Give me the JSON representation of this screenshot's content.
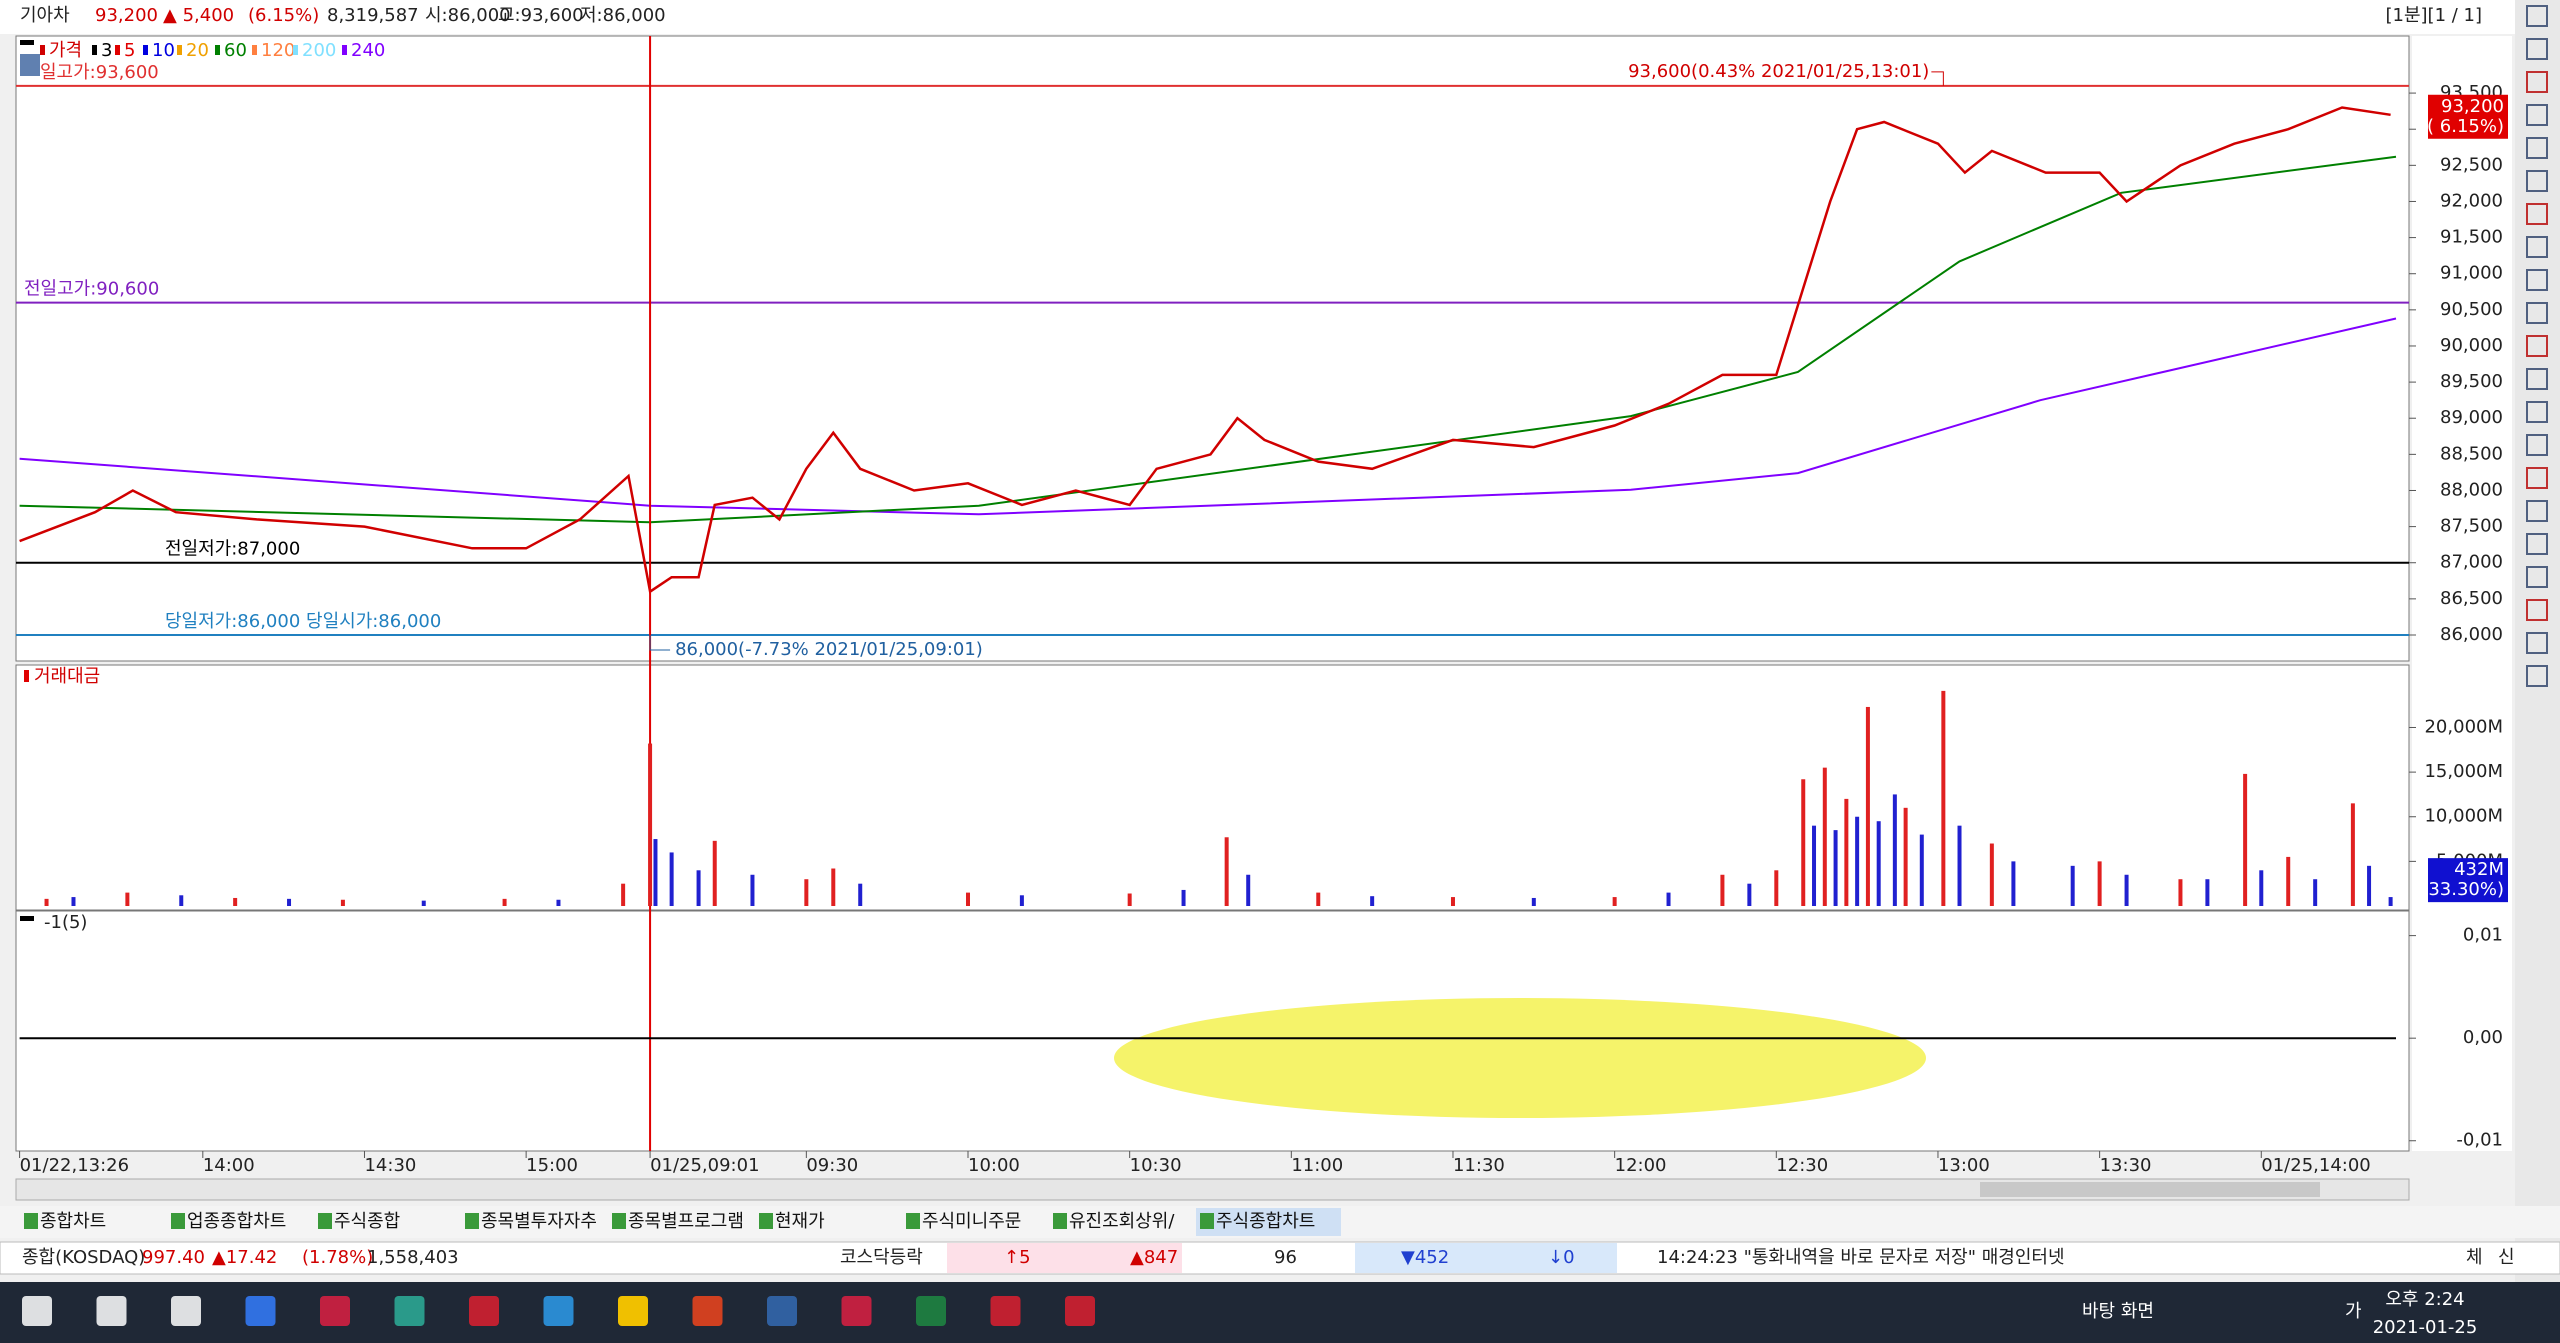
{
  "header": {
    "name": "기아차",
    "price": "93,200",
    "change": "▲ 5,400",
    "rate": "(6.15%)",
    "volume": "8,319,587",
    "open": "시:86,000",
    "high": "고:93,600",
    "low": "저:86,000",
    "period": "[1분][1 / 1]"
  },
  "chart_data": [
    {
      "type": "line",
      "legend": [
        {
          "name": "가격",
          "color": "#d00000"
        },
        {
          "name": "3",
          "color": "#000000"
        },
        {
          "name": "5",
          "color": "#e00000"
        },
        {
          "name": "10",
          "color": "#0000e0"
        },
        {
          "name": "20",
          "color": "#f0a000"
        },
        {
          "name": "60",
          "color": "#008000"
        },
        {
          "name": "120",
          "color": "#ff8040"
        },
        {
          "name": "200",
          "color": "#80e0ff"
        },
        {
          "name": "240",
          "color": "#8000ff"
        }
      ],
      "series": [
        {
          "color": "#8000ff",
          "x": [
            0,
            117,
            178,
            299,
            330,
            375,
            441
          ],
          "values": [
            88440,
            87790,
            87670,
            88010,
            88240,
            89250,
            90380
          ]
        },
        {
          "color": "#008000",
          "x": [
            0,
            117,
            178,
            299,
            330,
            360,
            390,
            441
          ],
          "values": [
            87790,
            87560,
            87790,
            89030,
            89640,
            91170,
            92120,
            92620
          ]
        },
        {
          "color": "#d00000",
          "x": [
            0,
            14,
            21,
            29,
            44,
            64,
            84,
            94,
            104,
            113,
            117,
            121,
            126,
            129,
            136,
            141,
            146,
            151,
            156,
            166,
            176,
            186,
            196,
            206,
            211,
            221,
            226,
            231,
            241,
            251,
            266,
            281,
            296,
            306,
            316,
            326,
            331,
            336,
            341,
            346,
            356,
            361,
            366,
            376,
            386,
            391,
            401,
            411,
            421,
            431,
            440
          ],
          "values": [
            87300,
            87700,
            88000,
            87700,
            87600,
            87500,
            87200,
            87200,
            87600,
            88200,
            86600,
            86800,
            86800,
            87800,
            87900,
            87600,
            88300,
            88800,
            88300,
            88000,
            88100,
            87800,
            88000,
            87800,
            88300,
            88500,
            89000,
            88700,
            88400,
            88300,
            88700,
            88600,
            88900,
            89200,
            89600,
            89600,
            90800,
            92000,
            93000,
            93100,
            92800,
            92400,
            92700,
            92400,
            92400,
            92000,
            92500,
            92800,
            93000,
            93300,
            93200
          ]
        }
      ],
      "xlim": [
        0,
        441
      ],
      "ylim": [
        85640,
        94290
      ],
      "yticks": [
        {
          "value": 86000,
          "label": "86,000"
        },
        {
          "value": 86500,
          "label": "86,500"
        },
        {
          "value": 87000,
          "label": "87,000"
        },
        {
          "value": 87500,
          "label": "87,500"
        },
        {
          "value": 88000,
          "label": "88,000"
        },
        {
          "value": 88500,
          "label": "88,500"
        },
        {
          "value": 89000,
          "label": "89,000"
        },
        {
          "value": 89500,
          "label": "89,500"
        },
        {
          "value": 90000,
          "label": "90,000"
        },
        {
          "value": 90500,
          "label": "90,500"
        },
        {
          "value": 91000,
          "label": "91,000"
        },
        {
          "value": 91500,
          "label": "91,500"
        },
        {
          "value": 92000,
          "label": "92,000"
        },
        {
          "value": 92500,
          "label": "92,500"
        },
        {
          "value": 93000,
          "label": "93,000"
        },
        {
          "value": 93500,
          "label": "93,500"
        }
      ],
      "xticks": [
        {
          "value": 0,
          "label": "01/22,13:26"
        },
        {
          "value": 34,
          "label": "14:00"
        },
        {
          "value": 64,
          "label": "14:30"
        },
        {
          "value": 94,
          "label": "15:00"
        },
        {
          "value": 117,
          "label": "01/25,09:01"
        },
        {
          "value": 146,
          "label": "09:30"
        },
        {
          "value": 176,
          "label": "10:00"
        },
        {
          "value": 206,
          "label": "10:30"
        },
        {
          "value": 236,
          "label": "11:00"
        },
        {
          "value": 266,
          "label": "11:30"
        },
        {
          "value": 296,
          "label": "12:00"
        },
        {
          "value": 326,
          "label": "12:30"
        },
        {
          "value": 356,
          "label": "13:00"
        },
        {
          "value": 386,
          "label": "13:30"
        },
        {
          "value": 416,
          "label": "01/25,14:00"
        }
      ],
      "hlines": [
        {
          "value": 93600,
          "label": "일고가:93,600",
          "color": "#e03030"
        },
        {
          "value": 90600,
          "label": "전일고가:90,600",
          "color": "#8020c0"
        },
        {
          "value": 87000,
          "label": "전일저가:87,000",
          "color": "#000000"
        },
        {
          "value": 86000,
          "label": "당일저가:86,000 당일시가:86,000",
          "color": "#2080c0"
        }
      ],
      "high_note": {
        "x": 357,
        "value": 93600,
        "label": "93,600(0.43% 2021/01/25,13:01)"
      },
      "low_note": {
        "x": 117,
        "value": 86000,
        "label": "86,000(-7.73% 2021/01/25,09:01)"
      },
      "crosshair_x": 117,
      "last_tag": {
        "value": 93200,
        "label": "93,200",
        "change": "( 6.15%)"
      }
    },
    {
      "type": "bar",
      "title": "거래대금",
      "xlim": [
        0,
        441
      ],
      "ylim": [
        0,
        27000
      ],
      "yticks": [
        {
          "value": 5000,
          "label": "5,000M"
        },
        {
          "value": 10000,
          "label": "10,000M"
        },
        {
          "value": 15000,
          "label": "15,000M"
        },
        {
          "value": 20000,
          "label": "20,000M"
        }
      ],
      "series": [
        {
          "color": "#e02020",
          "x": [
            5,
            20,
            40,
            60,
            90,
            112,
            117,
            129,
            146,
            151,
            176,
            206,
            224,
            241,
            266,
            296,
            316,
            326,
            331,
            335,
            339,
            343,
            350,
            357,
            366,
            386,
            401,
            413,
            421,
            433
          ],
          "values": [
            800,
            1500,
            900,
            700,
            800,
            2500,
            18200,
            7300,
            3000,
            4200,
            1500,
            1400,
            7700,
            1500,
            1000,
            1000,
            3500,
            4000,
            14200,
            15500,
            12000,
            22300,
            11000,
            24100,
            7000,
            5000,
            3000,
            14800,
            5500,
            11500
          ]
        },
        {
          "color": "#2020d0",
          "x": [
            10,
            30,
            50,
            75,
            100,
            118,
            121,
            126,
            136,
            156,
            186,
            216,
            228,
            251,
            281,
            306,
            321,
            333,
            337,
            341,
            345,
            348,
            353,
            360,
            370,
            381,
            391,
            406,
            416,
            426,
            436,
            440
          ],
          "values": [
            1000,
            1200,
            800,
            600,
            700,
            7500,
            6000,
            4000,
            3500,
            2500,
            1200,
            1800,
            3500,
            1100,
            900,
            1500,
            2500,
            9000,
            8500,
            10000,
            9500,
            12500,
            8000,
            9000,
            5000,
            4500,
            3500,
            3000,
            4000,
            3000,
            4500,
            1000
          ]
        }
      ],
      "last_tag": {
        "value": 432,
        "label": "432M",
        "change": "( 33.30%)"
      }
    },
    {
      "type": "line",
      "title": "-1(5)",
      "xlim": [
        0,
        441
      ],
      "ylim": [
        -0.011,
        0.0124
      ],
      "yticks": [
        {
          "value": -0.01,
          "label": "-0,01"
        },
        {
          "value": 0,
          "label": "0,00"
        },
        {
          "value": 0.01,
          "label": "0,01"
        }
      ],
      "series": [
        {
          "color": "#000000",
          "x": [
            0,
            441
          ],
          "values": [
            0,
            0
          ]
        }
      ]
    }
  ],
  "tabs": [
    "종합차트",
    "업종종합차트",
    "주식종합",
    "종목별투자자추",
    "종목별프로그램",
    "현재가",
    "주식미니주문",
    "유진조회상위/",
    "주식종합차트"
  ],
  "status": {
    "index": "종합(KOSDAQ)",
    "value": "997.40",
    "change": "▲17.42",
    "rate": "(1.78%)",
    "volume": "1,558,403",
    "market": "코스닥등락",
    "upper": "↑5",
    "up": "▲847",
    "flat": "96",
    "down": "▼452",
    "lower": "↓0",
    "news": "14:24:23 \"통화내역을 바로 문자로 저장\" 매경인터넷",
    "btn1": "체",
    "btn2": "신"
  },
  "taskbar": {
    "desktop": "바탕 화면",
    "ime": "가",
    "time": "오후 2:24",
    "date": "2021-01-25"
  }
}
